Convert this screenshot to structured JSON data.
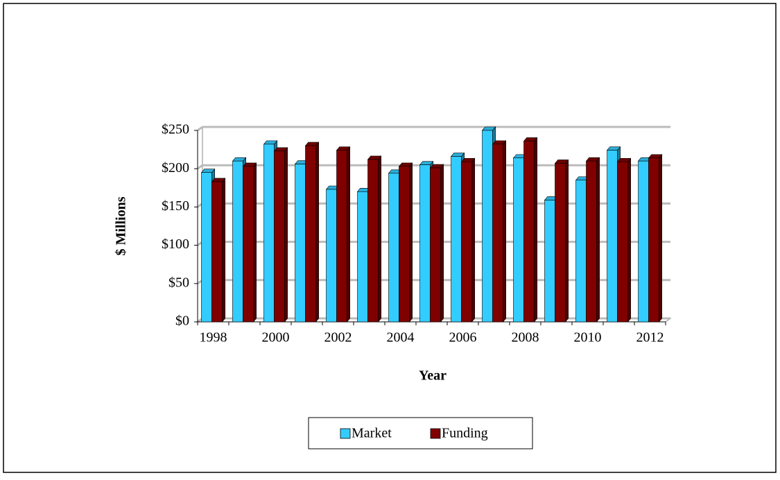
{
  "chart_data": {
    "type": "bar",
    "categories": [
      "1998",
      null,
      "2000",
      null,
      "2002",
      null,
      "2004",
      null,
      "2006",
      null,
      "2008",
      null,
      "2010",
      null,
      "2012"
    ],
    "series": [
      {
        "name": "Market",
        "color": "#33ccff",
        "values": [
          195,
          210,
          232,
          206,
          173,
          170,
          194,
          205,
          216,
          250,
          214,
          159,
          185,
          224,
          210
        ]
      },
      {
        "name": "Funding",
        "color": "#800000",
        "values": [
          183,
          203,
          223,
          230,
          224,
          212,
          203,
          201,
          209,
          232,
          236,
          207,
          210,
          209,
          214
        ]
      }
    ],
    "ylim": [
      0,
      250
    ],
    "yticks": [
      {
        "value": 0,
        "label": "$0"
      },
      {
        "value": 50,
        "label": "$50"
      },
      {
        "value": 100,
        "label": "$100"
      },
      {
        "value": 150,
        "label": "$150"
      },
      {
        "value": 200,
        "label": "$200"
      },
      {
        "value": 250,
        "label": "$250"
      }
    ],
    "y_label": "$ Millions",
    "x_label": "Year",
    "grid": true,
    "legend": "bottom"
  }
}
